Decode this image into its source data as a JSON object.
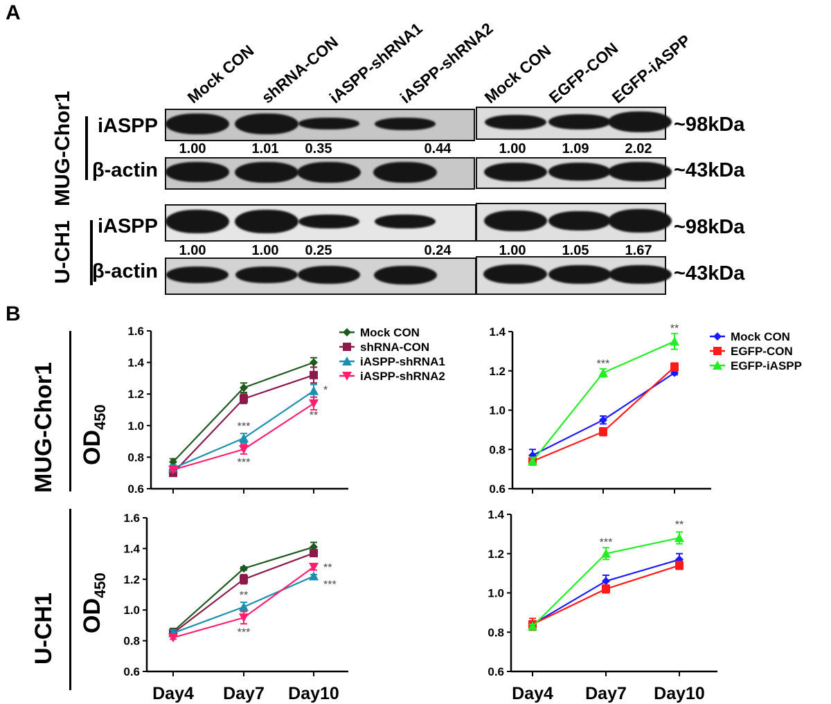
{
  "panel_a": {
    "letter": "A",
    "lanes_knockdown": [
      "Mock CON",
      "shRNA-CON",
      "iASPP-shRNA1",
      "iASPP-shRNA2"
    ],
    "lanes_overexpression": [
      "Mock CON",
      "EGFP-CON",
      "EGFP-iASPP"
    ],
    "cell_line_labels": [
      "MUG-Chor1",
      "U-CH1"
    ],
    "row_labels": {
      "target": "iASPP",
      "loading": "β-actin"
    },
    "kda_labels": {
      "target": "~98kDa",
      "loading": "~43kDa"
    },
    "quantification": {
      "MUG-Chor1": {
        "knockdown": [
          "1.00",
          "1.01",
          "0.35",
          "0.44"
        ],
        "overexpression": [
          "1.00",
          "1.09",
          "2.02"
        ]
      },
      "U-CH1": {
        "knockdown": [
          "1.00",
          "1.00",
          "0.25",
          "0.24"
        ],
        "overexpression": [
          "1.00",
          "1.05",
          "1.67"
        ]
      }
    },
    "band_intensity": {
      "MUG-Chor1": {
        "iASPP_knockdown": [
          1.0,
          1.0,
          0.55,
          0.6
        ],
        "actin_knockdown": [
          0.95,
          1.0,
          1.0,
          1.0
        ],
        "iASPP_overexpression": [
          0.7,
          0.75,
          1.0
        ],
        "actin_overexpression": [
          0.9,
          0.85,
          0.95
        ]
      },
      "U-CH1": {
        "iASPP_knockdown": [
          1.0,
          1.0,
          0.6,
          0.6
        ],
        "actin_knockdown": [
          0.8,
          0.8,
          0.85,
          0.9
        ],
        "iASPP_overexpression": [
          0.9,
          0.85,
          1.0
        ],
        "actin_overexpression": [
          0.95,
          0.9,
          0.9
        ]
      }
    }
  },
  "panel_b": {
    "letter": "B",
    "cell_line_labels": [
      "MUG-Chor1",
      "U-CH1"
    ],
    "ylabel_main": "OD",
    "ylabel_sub": "450"
  },
  "chart_data": [
    {
      "id": "mug-knockdown",
      "type": "line",
      "title": "",
      "xlabel": "",
      "ylabel": "OD450",
      "categories": [
        "Day4",
        "Day7",
        "Day10"
      ],
      "show_xtick_labels": false,
      "ylim": [
        0.6,
        1.6
      ],
      "yticks": [
        "0.6",
        "0.8",
        "1.0",
        "1.2",
        "1.4",
        "1.6"
      ],
      "grid": false,
      "legend": "top-right",
      "series": [
        {
          "name": "Mock CON",
          "color": "#1e5a1e",
          "marker": "diamond",
          "values": [
            0.77,
            1.24,
            1.4
          ],
          "errors": [
            0.02,
            0.03,
            0.03
          ]
        },
        {
          "name": "shRNA-CON",
          "color": "#8b1a4a",
          "marker": "square",
          "values": [
            0.7,
            1.17,
            1.32
          ],
          "errors": [
            0.01,
            0.03,
            0.05
          ]
        },
        {
          "name": "iASPP-shRNA1",
          "color": "#1a8fb0",
          "marker": "triangle-up",
          "values": [
            0.73,
            0.92,
            1.22
          ],
          "errors": [
            0.02,
            0.03,
            0.04
          ]
        },
        {
          "name": "iASPP-shRNA2",
          "color": "#ff1f6e",
          "marker": "triangle-down",
          "values": [
            0.72,
            0.85,
            1.14
          ],
          "errors": [
            0.01,
            0.03,
            0.04
          ]
        }
      ],
      "annotations": [
        {
          "x": "Day7",
          "y": 1.0,
          "text": "***"
        },
        {
          "x": "Day7",
          "y": 0.77,
          "text": "***"
        },
        {
          "x": "Day10",
          "y": 1.23,
          "text": "*",
          "side": "right"
        },
        {
          "x": "Day10",
          "y": 1.07,
          "text": "**"
        }
      ]
    },
    {
      "id": "mug-overexpression",
      "type": "line",
      "title": "",
      "xlabel": "",
      "ylabel": "",
      "categories": [
        "Day4",
        "Day7",
        "Day10"
      ],
      "show_xtick_labels": false,
      "ylim": [
        0.6,
        1.4
      ],
      "yticks": [
        "0.6",
        "0.8",
        "1.0",
        "1.2",
        "1.4"
      ],
      "grid": false,
      "legend": "top-right",
      "series": [
        {
          "name": "Mock CON",
          "color": "#1a1aff",
          "marker": "diamond",
          "values": [
            0.77,
            0.95,
            1.19
          ],
          "errors": [
            0.03,
            0.02,
            0.01
          ]
        },
        {
          "name": "EGFP-CON",
          "color": "#ff1a1a",
          "marker": "square",
          "values": [
            0.74,
            0.89,
            1.22
          ],
          "errors": [
            0.02,
            0.02,
            0.02
          ]
        },
        {
          "name": "EGFP-iASPP",
          "color": "#22ee22",
          "marker": "triangle-up",
          "values": [
            0.74,
            1.19,
            1.35
          ],
          "errors": [
            0.02,
            0.02,
            0.04
          ]
        }
      ],
      "annotations": [
        {
          "x": "Day7",
          "y": 1.24,
          "text": "***"
        },
        {
          "x": "Day10",
          "y": 1.42,
          "text": "**"
        }
      ]
    },
    {
      "id": "uch1-knockdown",
      "type": "line",
      "title": "",
      "xlabel": "",
      "ylabel": "OD450",
      "categories": [
        "Day4",
        "Day7",
        "Day10"
      ],
      "show_xtick_labels": true,
      "ylim": [
        0.6,
        1.6
      ],
      "yticks": [
        "0.6",
        "0.8",
        "1.0",
        "1.2",
        "1.4",
        "1.6"
      ],
      "grid": false,
      "legend": "none",
      "series": [
        {
          "name": "Mock CON",
          "color": "#1e5a1e",
          "marker": "diamond",
          "values": [
            0.86,
            1.27,
            1.41
          ],
          "errors": [
            0.02,
            0.01,
            0.03
          ]
        },
        {
          "name": "shRNA-CON",
          "color": "#8b1a4a",
          "marker": "square",
          "values": [
            0.85,
            1.2,
            1.37
          ],
          "errors": [
            0.02,
            0.03,
            0.01
          ]
        },
        {
          "name": "iASPP-shRNA1",
          "color": "#1a8fb0",
          "marker": "triangle-up",
          "values": [
            0.85,
            1.02,
            1.22
          ],
          "errors": [
            0.02,
            0.03,
            0.01
          ]
        },
        {
          "name": "iASPP-shRNA2",
          "color": "#ff1f6e",
          "marker": "triangle-down",
          "values": [
            0.82,
            0.95,
            1.28
          ],
          "errors": [
            0.01,
            0.04,
            0.02
          ]
        }
      ],
      "annotations": [
        {
          "x": "Day7",
          "y": 1.1,
          "text": "**"
        },
        {
          "x": "Day7",
          "y": 0.86,
          "text": "***"
        },
        {
          "x": "Day10",
          "y": 1.28,
          "text": "**",
          "side": "right"
        },
        {
          "x": "Day10",
          "y": 1.17,
          "text": "***",
          "side": "right"
        }
      ]
    },
    {
      "id": "uch1-overexpression",
      "type": "line",
      "title": "",
      "xlabel": "",
      "ylabel": "",
      "categories": [
        "Day4",
        "Day7",
        "Day10"
      ],
      "show_xtick_labels": true,
      "ylim": [
        0.6,
        1.4
      ],
      "yticks": [
        "0.6",
        "0.8",
        "1.0",
        "1.2",
        "1.4"
      ],
      "grid": false,
      "legend": "none",
      "series": [
        {
          "name": "Mock CON",
          "color": "#1a1aff",
          "marker": "diamond",
          "values": [
            0.84,
            1.06,
            1.17
          ],
          "errors": [
            0.01,
            0.03,
            0.03
          ]
        },
        {
          "name": "EGFP-CON",
          "color": "#ff1a1a",
          "marker": "square",
          "values": [
            0.84,
            1.02,
            1.14
          ],
          "errors": [
            0.03,
            0.02,
            0.02
          ]
        },
        {
          "name": "EGFP-iASPP",
          "color": "#22ee22",
          "marker": "triangle-up",
          "values": [
            0.83,
            1.2,
            1.28
          ],
          "errors": [
            0.01,
            0.03,
            0.03
          ]
        }
      ],
      "annotations": [
        {
          "x": "Day7",
          "y": 1.26,
          "text": "***"
        },
        {
          "x": "Day10",
          "y": 1.35,
          "text": "**"
        }
      ]
    }
  ]
}
